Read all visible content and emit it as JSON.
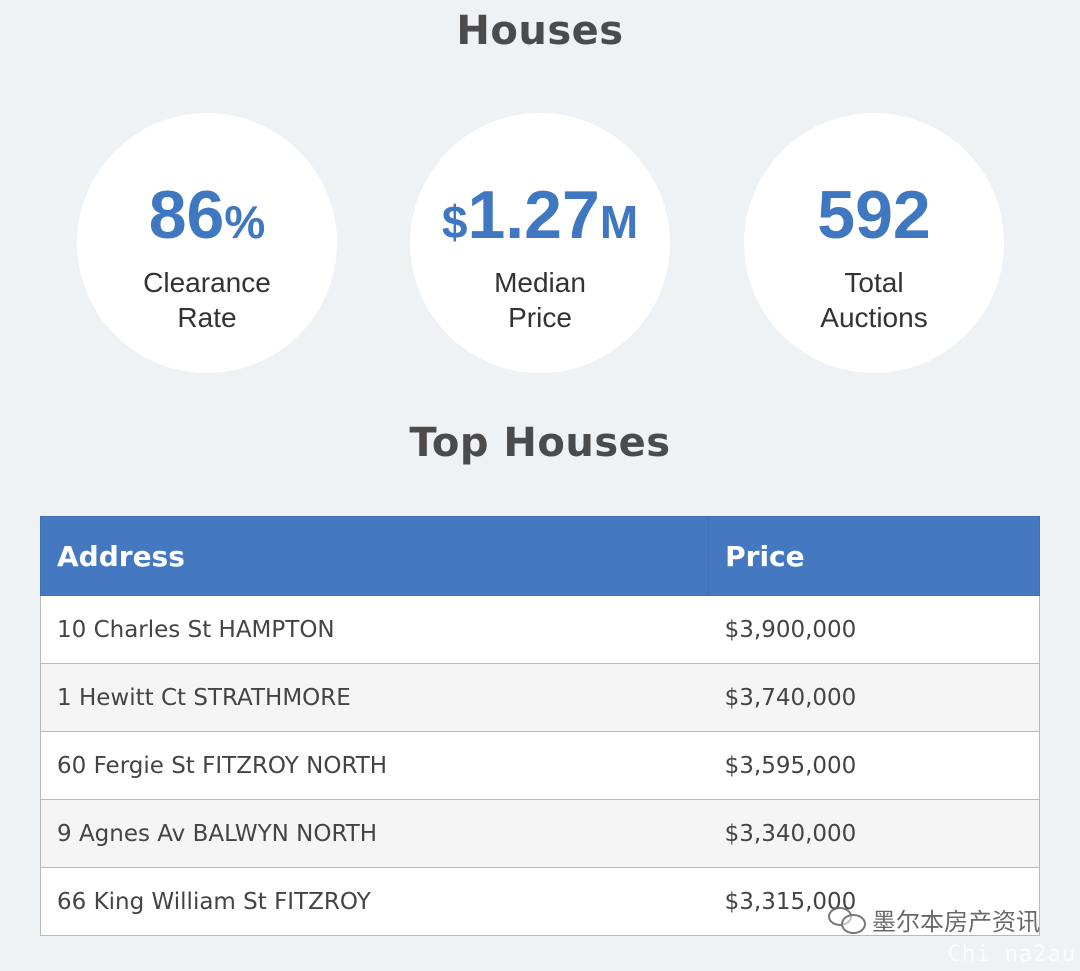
{
  "titles": {
    "houses": "Houses",
    "top_houses": "Top Houses"
  },
  "stats": {
    "clearance": {
      "value_main": "86",
      "value_suffix": "%",
      "label_line1": "Clearance",
      "label_line2": "Rate"
    },
    "median": {
      "value_prefix": "$",
      "value_main": "1.27",
      "value_suffix": "M",
      "label_line1": "Median",
      "label_line2": "Price"
    },
    "auctions": {
      "value_main": "592",
      "label_line1": "Total",
      "label_line2": "Auctions"
    }
  },
  "table": {
    "headers": {
      "address": "Address",
      "price": "Price"
    },
    "rows": [
      {
        "address": "10 Charles St HAMPTON",
        "price": "$3,900,000"
      },
      {
        "address": "1 Hewitt Ct STRATHMORE",
        "price": "$3,740,000"
      },
      {
        "address": "60 Fergie St FITZROY NORTH",
        "price": "$3,595,000"
      },
      {
        "address": "9 Agnes Av BALWYN NORTH",
        "price": "$3,340,000"
      },
      {
        "address": "66 King William St FITZROY",
        "price": "$3,315,000"
      }
    ]
  },
  "watermark": {
    "icon": "wechat-icon",
    "text": "墨尔本房产资讯",
    "sub": "Chi na2au"
  },
  "colors": {
    "accent_blue": "#3f78c1",
    "header_blue": "#4479c2",
    "background": "#eef2f5"
  }
}
